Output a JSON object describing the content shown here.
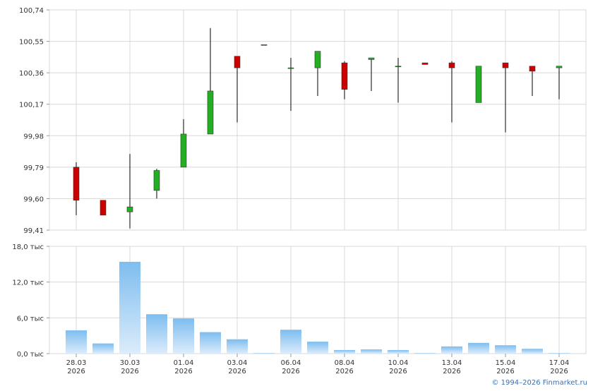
{
  "chart_data": [
    {
      "type": "candlestick",
      "ylim": [
        99.41,
        100.74
      ],
      "yticks": [
        {
          "value": 99.41,
          "label": "99,41"
        },
        {
          "value": 99.6,
          "label": "99,60"
        },
        {
          "value": 99.79,
          "label": "99,79"
        },
        {
          "value": 99.98,
          "label": "99,98"
        },
        {
          "value": 100.17,
          "label": "100,17"
        },
        {
          "value": 100.36,
          "label": "100,36"
        },
        {
          "value": 100.55,
          "label": "100,55"
        },
        {
          "value": 100.74,
          "label": "100,74"
        }
      ],
      "up_color": "#22b022",
      "down_color": "#cc0000",
      "grid": true,
      "open": [
        99.79,
        99.59,
        99.52,
        99.65,
        99.79,
        99.99,
        100.46,
        100.53,
        100.39,
        100.39,
        100.42,
        100.44,
        100.4,
        100.42,
        100.42,
        100.18,
        100.42,
        100.4,
        100.39
      ],
      "high": [
        99.82,
        99.59,
        99.87,
        99.78,
        100.08,
        100.63,
        100.46,
        100.53,
        100.45,
        100.49,
        100.43,
        100.45,
        100.45,
        100.42,
        100.43,
        100.4,
        100.42,
        100.4,
        100.4
      ],
      "low": [
        99.5,
        99.5,
        99.42,
        99.6,
        99.79,
        99.99,
        100.06,
        100.53,
        100.13,
        100.22,
        100.2,
        100.25,
        100.18,
        100.41,
        100.06,
        100.18,
        100.0,
        100.22,
        100.2
      ],
      "close": [
        99.59,
        99.5,
        99.55,
        99.77,
        99.99,
        100.25,
        100.39,
        100.53,
        100.39,
        100.49,
        100.26,
        100.45,
        100.4,
        100.41,
        100.39,
        100.4,
        100.39,
        100.37,
        100.4
      ]
    },
    {
      "type": "bar",
      "categories": [
        [
          "28.03",
          "2026"
        ],
        null,
        [
          "30.03",
          "2026"
        ],
        null,
        [
          "01.04",
          "2026"
        ],
        null,
        [
          "03.04",
          "2026"
        ],
        null,
        [
          "06.04",
          "2026"
        ],
        null,
        [
          "08.04",
          "2026"
        ],
        null,
        [
          "10.04",
          "2026"
        ],
        null,
        [
          "13.04",
          "2026"
        ],
        null,
        [
          "15.04",
          "2026"
        ],
        null,
        [
          "17.04",
          "2026"
        ]
      ],
      "values": [
        3.9,
        1.7,
        15.4,
        6.6,
        5.9,
        3.6,
        2.4,
        0.1,
        4.0,
        2.0,
        0.6,
        0.7,
        0.6,
        0.1,
        1.2,
        1.8,
        1.4,
        0.8,
        0.1
      ],
      "ylim": [
        0,
        18
      ],
      "yticks": [
        {
          "value": 0,
          "label": "0,0 тыс"
        },
        {
          "value": 6,
          "label": "6,0 тыс"
        },
        {
          "value": 12,
          "label": "12,0 тыс"
        },
        {
          "value": 18,
          "label": "18,0 тыс"
        }
      ],
      "color": "#7dbdef",
      "grid": true
    }
  ],
  "footer": "© 1994–2026 Finmarket.ru"
}
